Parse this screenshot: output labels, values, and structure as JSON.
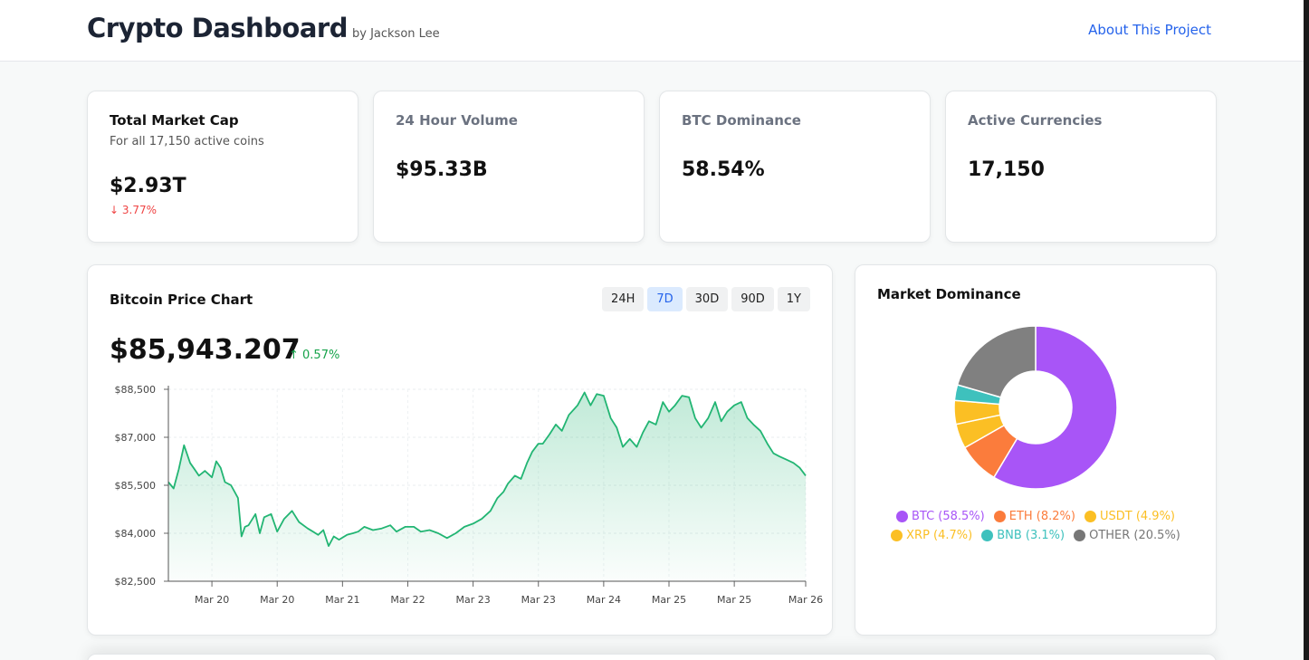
{
  "header": {
    "title": "Crypto Dashboard",
    "byline": "by Jackson Lee",
    "about_link": "About This Project"
  },
  "stats": [
    {
      "title": "Total Market Cap",
      "subtitle": "For all 17,150 active coins",
      "value": "$2.93T",
      "change": "↓ 3.77%"
    },
    {
      "title": "24 Hour Volume",
      "value": "$95.33B"
    },
    {
      "title": "BTC Dominance",
      "value": "58.54%"
    },
    {
      "title": "Active Currencies",
      "value": "17,150"
    }
  ],
  "price_chart": {
    "title": "Bitcoin Price Chart",
    "ranges": [
      "24H",
      "7D",
      "30D",
      "90D",
      "1Y"
    ],
    "active_range": "7D",
    "price": "$85,943.207",
    "change": "↑ 0.57%"
  },
  "dominance": {
    "title": "Market Dominance",
    "legend": [
      {
        "label": "BTC (58.5%)",
        "color": "#a855f7"
      },
      {
        "label": "ETH (8.2%)",
        "color": "#fb7c3c"
      },
      {
        "label": "USDT (4.9%)",
        "color": "#fbbf24"
      },
      {
        "label": "XRP (4.7%)",
        "color": "#fbbf24"
      },
      {
        "label": "BNB (3.1%)",
        "color": "#3ec1bd"
      },
      {
        "label": "OTHER (20.5%)",
        "color": "#777777"
      }
    ]
  },
  "colors": {
    "accent": "#2563eb",
    "positive": "#16a34a",
    "negative": "#ef4444",
    "line": "#22b573",
    "btc": "#a855f7",
    "eth": "#fb7c3c",
    "usdt": "#fbbf24",
    "xrp": "#fbbf24",
    "bnb": "#3ec1bd",
    "other": "#808080"
  },
  "chart_data": [
    {
      "type": "area",
      "title": "",
      "xlabel": "",
      "ylabel": "",
      "ylim": [
        82500,
        88500
      ],
      "yticks": [
        82500,
        84000,
        85500,
        87000,
        88500
      ],
      "ytick_labels": [
        "$82,500",
        "$84,000",
        "$85,500",
        "$87,000",
        "$88,500"
      ],
      "xlim": [
        0,
        7.32
      ],
      "xticks": [
        0.5,
        1.25,
        2.0,
        2.75,
        3.5,
        4.25,
        5.0,
        5.75,
        6.5,
        7.32
      ],
      "xtick_labels": [
        "Mar 20",
        "Mar 20",
        "Mar 21",
        "Mar 22",
        "Mar 23",
        "Mar 23",
        "Mar 24",
        "Mar 25",
        "Mar 25",
        "Mar 26"
      ],
      "grid": true,
      "series": [
        {
          "x": [
            0,
            0.06,
            0.12,
            0.18,
            0.25,
            0.3,
            0.35,
            0.42,
            0.5,
            0.55,
            0.6,
            0.65,
            0.72,
            0.8,
            0.84,
            0.88,
            0.92,
            1.0,
            1.05,
            1.1,
            1.18,
            1.25,
            1.33,
            1.42,
            1.5,
            1.6,
            1.66,
            1.72,
            1.78,
            1.84,
            1.9,
            1.96,
            2.05,
            2.12,
            2.18,
            2.25,
            2.35,
            2.45,
            2.55,
            2.62,
            2.72,
            2.82,
            2.9,
            3.0,
            3.1,
            3.2,
            3.3,
            3.4,
            3.5,
            3.6,
            3.7,
            3.78,
            3.85,
            3.9,
            3.98,
            4.05,
            4.12,
            4.18,
            4.25,
            4.3,
            4.38,
            4.45,
            4.52,
            4.6,
            4.7,
            4.78,
            4.85,
            4.92,
            5.0,
            5.08,
            5.15,
            5.22,
            5.3,
            5.38,
            5.45,
            5.52,
            5.6,
            5.68,
            5.75,
            5.82,
            5.9,
            5.98,
            6.05,
            6.12,
            6.2,
            6.28,
            6.35,
            6.42,
            6.5,
            6.58,
            6.65,
            6.72,
            6.8,
            6.88,
            6.95,
            7.02,
            7.1,
            7.18,
            7.25,
            7.32
          ],
          "values": [
            85600,
            85400,
            86000,
            86750,
            86200,
            86000,
            85800,
            85950,
            85750,
            86250,
            86050,
            85600,
            85500,
            85100,
            83900,
            84200,
            84250,
            84600,
            84000,
            84500,
            84600,
            84050,
            84450,
            84700,
            84350,
            84150,
            84050,
            83950,
            84100,
            83600,
            83900,
            83800,
            83950,
            84000,
            84050,
            84200,
            84100,
            84150,
            84250,
            84050,
            84200,
            84200,
            84050,
            84100,
            84000,
            83850,
            84000,
            84200,
            84300,
            84450,
            84700,
            85100,
            85300,
            85550,
            85800,
            85700,
            86200,
            86550,
            86800,
            86800,
            87100,
            87400,
            87200,
            87700,
            88000,
            88400,
            88000,
            88350,
            88300,
            87600,
            87300,
            86700,
            86950,
            86700,
            87150,
            87500,
            87400,
            88100,
            87800,
            88000,
            88300,
            88250,
            87600,
            87300,
            87600,
            88100,
            87500,
            87800,
            88000,
            88100,
            87600,
            87400,
            87200,
            86800,
            86500,
            86400,
            86300,
            86200,
            86050,
            85800
          ]
        }
      ]
    },
    {
      "type": "pie",
      "title": "Market Dominance",
      "categories": [
        "BTC",
        "ETH",
        "USDT",
        "XRP",
        "BNB",
        "OTHER"
      ],
      "values": [
        58.5,
        8.2,
        4.9,
        4.7,
        3.1,
        20.5
      ]
    }
  ]
}
